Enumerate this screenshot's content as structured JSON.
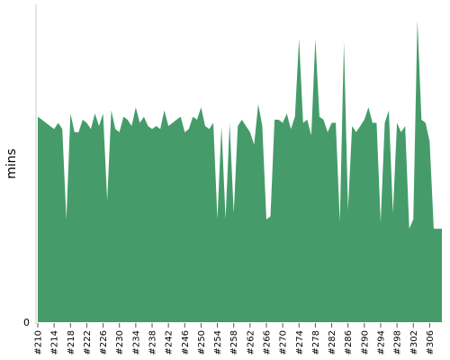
{
  "chart_data": {
    "type": "area",
    "title": "",
    "ylabel": "mins",
    "xlabel": "",
    "ylim": [
      0,
      102
    ],
    "y_ticks": [
      {
        "value": 0,
        "label": "0"
      }
    ],
    "grid": false,
    "legend": "none",
    "colors": {
      "fill": "#459c6a",
      "axis": "#cccccc",
      "tick": "#555555"
    },
    "x": [
      "#210",
      "#211",
      "#212",
      "#213",
      "#214",
      "#215",
      "#216",
      "#217",
      "#218",
      "#219",
      "#220",
      "#221",
      "#222",
      "#223",
      "#224",
      "#225",
      "#226",
      "#227",
      "#228",
      "#229",
      "#230",
      "#231",
      "#232",
      "#233",
      "#234",
      "#235",
      "#236",
      "#237",
      "#238",
      "#239",
      "#240",
      "#241",
      "#242",
      "#243",
      "#244",
      "#245",
      "#246",
      "#247",
      "#248",
      "#249",
      "#250",
      "#251",
      "#252",
      "#253",
      "#254",
      "#255",
      "#256",
      "#257",
      "#258",
      "#259",
      "#260",
      "#261",
      "#262",
      "#263",
      "#264",
      "#265",
      "#266",
      "#267",
      "#268",
      "#269",
      "#270",
      "#271",
      "#272",
      "#273",
      "#274",
      "#275",
      "#276",
      "#277",
      "#278",
      "#279",
      "#280",
      "#281",
      "#282",
      "#283",
      "#284",
      "#285",
      "#286",
      "#287",
      "#288",
      "#289",
      "#290",
      "#291",
      "#292",
      "#293",
      "#294",
      "#295",
      "#296",
      "#297",
      "#298",
      "#299",
      "#300",
      "#301",
      "#302",
      "#303",
      "#304",
      "#305",
      "#306",
      "#307",
      "#308",
      "#309"
    ],
    "x_tick_labels": [
      "#210",
      "#214",
      "#218",
      "#222",
      "#226",
      "#230",
      "#234",
      "#238",
      "#242",
      "#246",
      "#250",
      "#254",
      "#258",
      "#262",
      "#266",
      "#270",
      "#274",
      "#278",
      "#282",
      "#286",
      "#290",
      "#294",
      "#298",
      "#302",
      "#306"
    ],
    "values": [
      66,
      65,
      64,
      63,
      62,
      64,
      62,
      33,
      67,
      61,
      61,
      65,
      64,
      62,
      67,
      63,
      67,
      39,
      68,
      62,
      61,
      66,
      65,
      63,
      69,
      64,
      66,
      63,
      62,
      63,
      62,
      68,
      63,
      64,
      65,
      66,
      61,
      62,
      66,
      65,
      69,
      63,
      62,
      64,
      33,
      63,
      33,
      64,
      35,
      63,
      65,
      63,
      61,
      57,
      70,
      63,
      33,
      34,
      65,
      65,
      64,
      67,
      62,
      66,
      91,
      64,
      65,
      60,
      91,
      66,
      65,
      61,
      64,
      64,
      32,
      90,
      36,
      63,
      61,
      63,
      65,
      69,
      64,
      64,
      32,
      64,
      68,
      35,
      64,
      61,
      63,
      30,
      33,
      97,
      65,
      64,
      58,
      30,
      30,
      30
    ]
  }
}
